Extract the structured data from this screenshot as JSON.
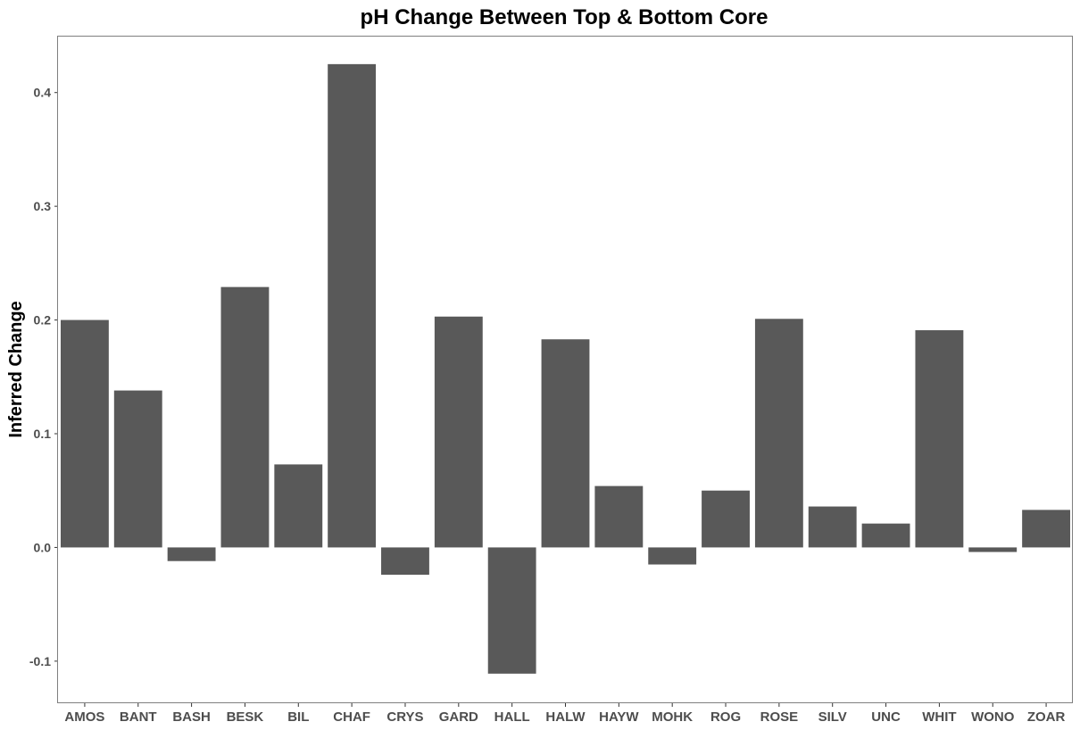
{
  "chart_data": {
    "type": "bar",
    "title": "pH Change Between Top & Bottom Core",
    "xlabel": "",
    "ylabel": "Inferred Change",
    "categories": [
      "AMOS",
      "BANT",
      "BASH",
      "BESK",
      "BIL",
      "CHAF",
      "CRYS",
      "GARD",
      "HALL",
      "HALW",
      "HAYW",
      "MOHK",
      "ROG",
      "ROSE",
      "SILV",
      "UNC",
      "WHIT",
      "WONO",
      "ZOAR"
    ],
    "values": [
      0.2,
      0.138,
      -0.012,
      0.229,
      0.073,
      0.425,
      -0.024,
      0.203,
      -0.111,
      0.183,
      0.054,
      -0.015,
      0.05,
      0.201,
      0.036,
      0.021,
      0.191,
      -0.004,
      0.033
    ],
    "ylim": [
      -0.137,
      0.45
    ],
    "yticks": [
      -0.1,
      0.0,
      0.1,
      0.2,
      0.3,
      0.4
    ],
    "ytick_labels": [
      "-0.1",
      "0.0",
      "0.1",
      "0.2",
      "0.3",
      "0.4"
    ],
    "bar_color": "#595959",
    "grid": false,
    "legend": "none"
  }
}
